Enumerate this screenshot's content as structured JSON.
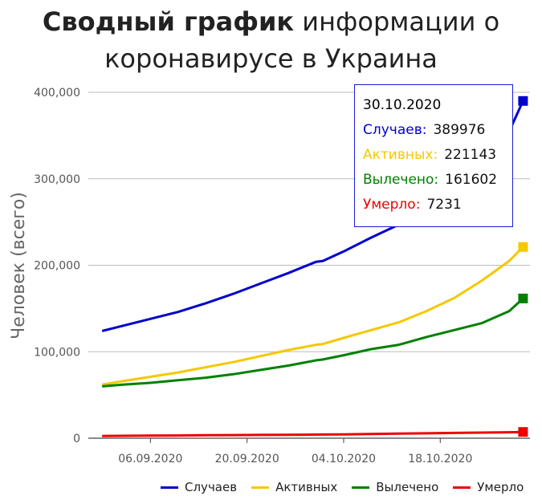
{
  "header": {
    "title_bold": "Сводный график",
    "title_rest_line1": " информации о",
    "title_line2": "коронавирусе в Украина"
  },
  "tooltip": {
    "date": "30.10.2020",
    "rows": [
      {
        "label": "Случаев:",
        "value": "389976",
        "color": "#0000cc"
      },
      {
        "label": "Активных:",
        "value": "221143",
        "color": "#f5c800"
      },
      {
        "label": "Вылечено:",
        "value": "161602",
        "color": "#008000"
      },
      {
        "label": "Умерло:",
        "value": "7231",
        "color": "#ee0000"
      }
    ]
  },
  "legend": [
    {
      "label": "Случаев",
      "color": "#0000cc"
    },
    {
      "label": "Активных",
      "color": "#f5c800"
    },
    {
      "label": "Вылечено",
      "color": "#008000"
    },
    {
      "label": "Умерло",
      "color": "#ee0000"
    }
  ],
  "chart_data": {
    "type": "line",
    "title": "Сводный график информации о коронавирусе в Украина",
    "ylabel": "Человек (всего)",
    "xlabel": "",
    "ylim": [
      0,
      400000
    ],
    "y_ticks": [
      "400,000",
      "300,000",
      "200,000",
      "100,000",
      "0"
    ],
    "y_tick_values": [
      400000,
      300000,
      200000,
      100000,
      0
    ],
    "x_ticks": [
      "06.09.2020",
      "20.09.2020",
      "04.10.2020",
      "18.10.2020"
    ],
    "x_tick_dates": [
      "2020-09-06",
      "2020-09-20",
      "2020-10-04",
      "2020-10-18"
    ],
    "x": [
      "2020-08-30",
      "2020-09-02",
      "2020-09-06",
      "2020-09-10",
      "2020-09-14",
      "2020-09-18",
      "2020-09-22",
      "2020-09-26",
      "2020-09-30",
      "2020-10-01",
      "2020-10-04",
      "2020-10-08",
      "2020-10-12",
      "2020-10-16",
      "2020-10-20",
      "2020-10-24",
      "2020-10-28",
      "2020-10-30"
    ],
    "series": [
      {
        "name": "Случаев",
        "color": "#0000cc",
        "values": [
          124000,
          130000,
          138000,
          146000,
          156000,
          167000,
          179000,
          191000,
          204000,
          205000,
          216000,
          232000,
          247000,
          265000,
          288000,
          317000,
          355000,
          389976
        ]
      },
      {
        "name": "Активных",
        "color": "#f5c800",
        "values": [
          62000,
          66000,
          71000,
          76000,
          82000,
          88000,
          95000,
          102000,
          108000,
          109000,
          116000,
          125000,
          134000,
          147000,
          162000,
          182000,
          205000,
          221143
        ]
      },
      {
        "name": "Вылечено",
        "color": "#008000",
        "values": [
          60000,
          62000,
          64000,
          67000,
          70000,
          74000,
          79000,
          84000,
          90000,
          91000,
          96000,
          103000,
          108000,
          117000,
          125000,
          133000,
          147000,
          161602
        ]
      },
      {
        "name": "Умерло",
        "color": "#ee0000",
        "values": [
          2600,
          2800,
          3000,
          3200,
          3400,
          3600,
          3800,
          4000,
          4200,
          4250,
          4500,
          4900,
          5300,
          5700,
          6100,
          6500,
          6900,
          7231
        ]
      }
    ],
    "grid": true,
    "legend_position": "bottom"
  }
}
